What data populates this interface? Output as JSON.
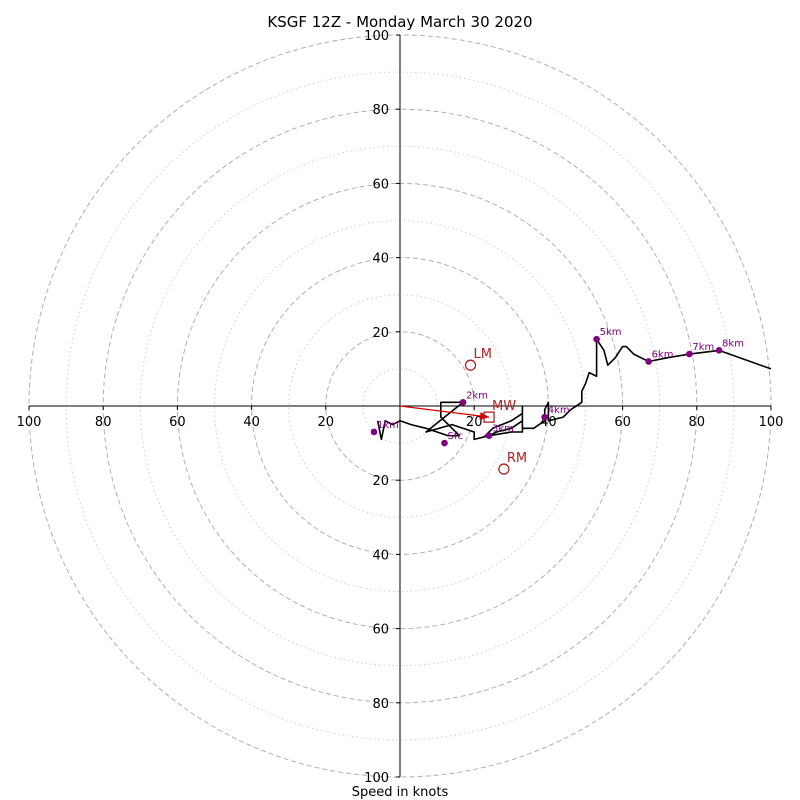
{
  "chart_data": {
    "type": "hodograph",
    "title": "KSGF 12Z - Monday March 30 2020",
    "xlabel": "Speed in knots",
    "xlim": [
      -100,
      100
    ],
    "ylim": [
      -100,
      100
    ],
    "grid": true,
    "x_tick_labels": [
      "100",
      "80",
      "60",
      "40",
      "20",
      "20",
      "40",
      "60",
      "80",
      "100"
    ],
    "y_tick_labels": [
      "100",
      "80",
      "60",
      "40",
      "20",
      "20",
      "40",
      "60",
      "80",
      "100"
    ],
    "major_rings": [
      20,
      40,
      60,
      80,
      100
    ],
    "minor_rings": [
      10,
      30,
      50,
      70,
      90
    ],
    "wind_trace": {
      "color": "#000000",
      "points": [
        [
          -6,
          -4
        ],
        [
          -5,
          -9
        ],
        [
          -4,
          -4
        ],
        [
          -2,
          -5
        ],
        [
          0,
          -4
        ],
        [
          3,
          -5
        ],
        [
          7,
          -6
        ],
        [
          10,
          -7
        ],
        [
          13,
          -8
        ],
        [
          16,
          -8
        ],
        [
          11,
          -3
        ],
        [
          11,
          1
        ],
        [
          14,
          1
        ],
        [
          17,
          1
        ],
        [
          12,
          -3
        ],
        [
          7,
          -7
        ],
        [
          14,
          -5
        ],
        [
          20,
          -7
        ],
        [
          20,
          -9
        ],
        [
          24,
          -8
        ],
        [
          26,
          -7
        ],
        [
          30,
          -6
        ],
        [
          33,
          -4
        ],
        [
          33,
          -6
        ],
        [
          33,
          -7
        ],
        [
          30,
          -7
        ],
        [
          24,
          -8
        ],
        [
          23,
          -8
        ],
        [
          25,
          -6
        ],
        [
          30,
          -4
        ],
        [
          33,
          -2
        ],
        [
          33,
          0
        ],
        [
          33,
          -6
        ],
        [
          36,
          -6
        ],
        [
          39,
          -4
        ],
        [
          39,
          -1
        ],
        [
          40,
          1
        ],
        [
          40,
          -4
        ],
        [
          44,
          -3
        ],
        [
          46,
          -1
        ],
        [
          49,
          1
        ],
        [
          49,
          4
        ],
        [
          50,
          6
        ],
        [
          51,
          9
        ],
        [
          53,
          8
        ],
        [
          53,
          18
        ],
        [
          55,
          15
        ],
        [
          56,
          11
        ],
        [
          58,
          13
        ],
        [
          60,
          16
        ],
        [
          61,
          16
        ],
        [
          63,
          14
        ],
        [
          67,
          12
        ],
        [
          72,
          13
        ],
        [
          78,
          14
        ],
        [
          86,
          15
        ],
        [
          100,
          10
        ]
      ]
    },
    "height_markers": [
      {
        "label": "Sfc",
        "x": 12,
        "y": -10
      },
      {
        "label": "1km",
        "x": -7,
        "y": -7
      },
      {
        "label": "2km",
        "x": 17,
        "y": 1
      },
      {
        "label": "3km",
        "x": 24,
        "y": -8
      },
      {
        "label": "4km",
        "x": 39,
        "y": -3
      },
      {
        "label": "5km",
        "x": 53,
        "y": 18
      },
      {
        "label": "6km",
        "x": 67,
        "y": 12
      },
      {
        "label": "7km",
        "x": 78,
        "y": 14
      },
      {
        "label": "8km",
        "x": 86,
        "y": 15
      }
    ],
    "storm_motion": [
      {
        "label": "LM",
        "x": 19,
        "y": 11,
        "marker": "circle"
      },
      {
        "label": "RM",
        "x": 28,
        "y": -17,
        "marker": "circle"
      },
      {
        "label": "MW",
        "x": 24,
        "y": -3,
        "marker": "square"
      }
    ],
    "mean_wind_vector": {
      "x": 24,
      "y": -3
    },
    "colors": {
      "trace": "#000000",
      "height_marker": "#800080",
      "storm_motion": "#b22222",
      "mean_wind_arrow": "#dd0000",
      "grid": "#b0b0b0"
    }
  }
}
